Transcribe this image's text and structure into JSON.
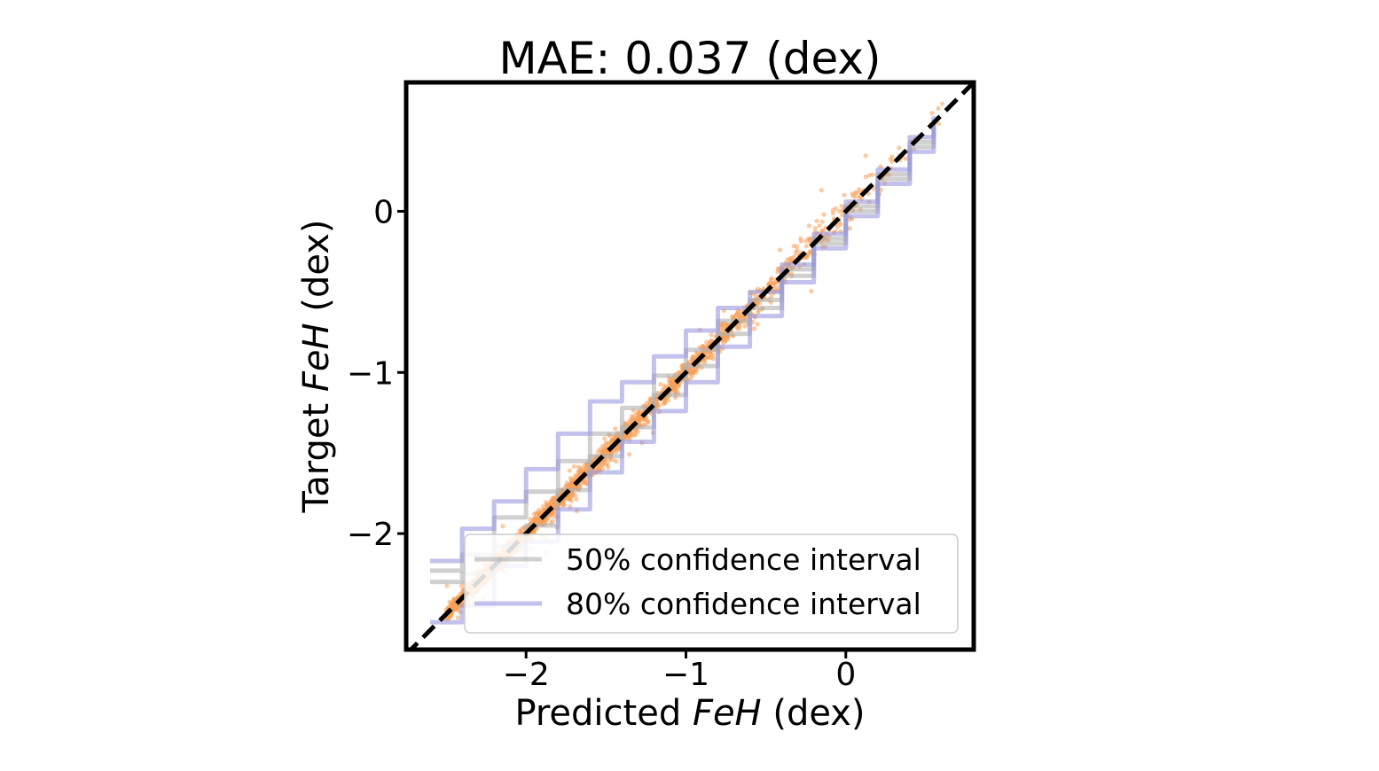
{
  "chart_data": {
    "type": "scatter",
    "title": "MAE: 0.037 (dex)",
    "xlabel": {
      "prefix": "Predicted ",
      "var": "FeH",
      "suffix": " (dex)"
    },
    "ylabel": {
      "prefix": "Target ",
      "var": "FeH",
      "suffix": " (dex)"
    },
    "xlim": [
      -2.75,
      0.8
    ],
    "ylim": [
      -2.72,
      0.8
    ],
    "xticks": [
      {
        "value": -2,
        "label": "−2"
      },
      {
        "value": -1,
        "label": "−1"
      },
      {
        "value": 0,
        "label": "0"
      }
    ],
    "yticks": [
      {
        "value": -2,
        "label": "−2"
      },
      {
        "value": -1,
        "label": "−1"
      },
      {
        "value": 0,
        "label": "0"
      }
    ],
    "grid": false,
    "point_color": "#f5a05a",
    "identity_line": {
      "style": "dashed",
      "color": "#000000",
      "from": [
        -2.75,
        -2.75
      ],
      "to": [
        0.8,
        0.8
      ]
    },
    "scatter": {
      "n_points": 2200,
      "x_range": [
        -2.5,
        0.65
      ],
      "approx_spread_dex": 0.06,
      "description": "predicted vs target metallicity, concentrated along the identity line"
    },
    "series": [
      {
        "name": "50% confidence interval",
        "color": "#b0b0b0",
        "lower": [
          [
            -2.6,
            -2.3
          ],
          [
            -2.4,
            -2.25
          ],
          [
            -2.2,
            -2.08
          ],
          [
            -2.0,
            -1.95
          ],
          [
            -1.8,
            -1.73
          ],
          [
            -1.6,
            -1.52
          ],
          [
            -1.4,
            -1.34
          ],
          [
            -1.2,
            -1.14
          ],
          [
            -1.0,
            -0.96
          ],
          [
            -0.8,
            -0.76
          ],
          [
            -0.6,
            -0.6
          ],
          [
            -0.4,
            -0.4
          ],
          [
            -0.2,
            -0.2
          ],
          [
            0.0,
            0.0
          ],
          [
            0.2,
            0.2
          ],
          [
            0.4,
            0.4
          ],
          [
            0.55,
            0.55
          ]
        ],
        "upper": [
          [
            -2.6,
            -2.23
          ],
          [
            -2.4,
            -2.13
          ],
          [
            -2.2,
            -1.9
          ],
          [
            -2.0,
            -1.74
          ],
          [
            -1.8,
            -1.55
          ],
          [
            -1.6,
            -1.38
          ],
          [
            -1.4,
            -1.22
          ],
          [
            -1.2,
            -1.02
          ],
          [
            -1.0,
            -0.86
          ],
          [
            -0.8,
            -0.68
          ],
          [
            -0.6,
            -0.55
          ],
          [
            -0.4,
            -0.36
          ],
          [
            -0.2,
            -0.17
          ],
          [
            0.0,
            0.03
          ],
          [
            0.2,
            0.23
          ],
          [
            0.4,
            0.43
          ],
          [
            0.55,
            0.57
          ]
        ]
      },
      {
        "name": "80% confidence interval",
        "color": "#9a9ae0",
        "lower": [
          [
            -2.6,
            -2.55
          ],
          [
            -2.4,
            -2.45
          ],
          [
            -2.2,
            -2.2
          ],
          [
            -2.0,
            -2.05
          ],
          [
            -1.8,
            -1.85
          ],
          [
            -1.6,
            -1.62
          ],
          [
            -1.4,
            -1.43
          ],
          [
            -1.2,
            -1.24
          ],
          [
            -1.0,
            -1.06
          ],
          [
            -0.8,
            -0.84
          ],
          [
            -0.6,
            -0.65
          ],
          [
            -0.4,
            -0.44
          ],
          [
            -0.2,
            -0.23
          ],
          [
            0.0,
            -0.03
          ],
          [
            0.2,
            0.17
          ],
          [
            0.4,
            0.37
          ],
          [
            0.55,
            0.52
          ]
        ],
        "upper": [
          [
            -2.6,
            -2.17
          ],
          [
            -2.4,
            -1.97
          ],
          [
            -2.2,
            -1.8
          ],
          [
            -2.0,
            -1.6
          ],
          [
            -1.8,
            -1.38
          ],
          [
            -1.6,
            -1.18
          ],
          [
            -1.4,
            -1.06
          ],
          [
            -1.2,
            -0.9
          ],
          [
            -1.0,
            -0.74
          ],
          [
            -0.8,
            -0.6
          ],
          [
            -0.6,
            -0.5
          ],
          [
            -0.4,
            -0.33
          ],
          [
            -0.2,
            -0.14
          ],
          [
            0.0,
            0.06
          ],
          [
            0.2,
            0.26
          ],
          [
            0.4,
            0.46
          ],
          [
            0.55,
            0.59
          ]
        ]
      }
    ],
    "legend": {
      "position": "lower-right",
      "entries": [
        {
          "label": "50% confidence interval",
          "color": "#b0b0b0"
        },
        {
          "label": "80% confidence interval",
          "color": "#9a9ae0"
        }
      ]
    }
  }
}
